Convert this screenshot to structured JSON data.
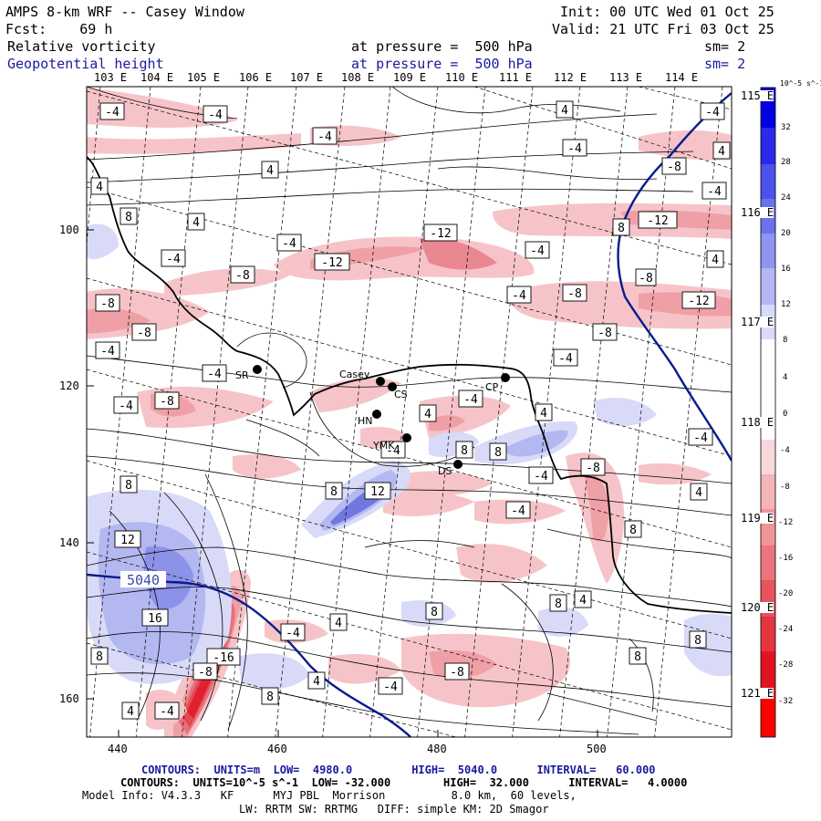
{
  "header": {
    "title": "AMPS 8-km WRF -- Casey Window",
    "forecast": "Fcst:    69 h",
    "init": "Init: 00 UTC Wed 01 Oct 25",
    "valid": "Valid: 21 UTC Fri 03 Oct 25",
    "field1_name": "Relative vorticity",
    "field1_level": "at pressure =  500 hPa",
    "field1_smooth": "sm= 2",
    "field2_name": "Geopotential height",
    "field2_level": "at pressure =  500 hPa",
    "field2_smooth": "sm= 2"
  },
  "colors": {
    "height_contour": "#0a1a8c",
    "coastline": "#000000",
    "positive_fill": "#e8404a",
    "negative_fill": "#3a4ae0"
  },
  "axes": {
    "x_ticks": [
      "440",
      "460",
      "480",
      "500"
    ],
    "y_ticks": [
      "100",
      "120",
      "140",
      "160"
    ],
    "lon_labels": [
      "103 E",
      "104 E",
      "105 E",
      "106 E",
      "107 E",
      "108 E",
      "109 E",
      "110 E",
      "111 E",
      "112 E",
      "113 E",
      "114 E"
    ],
    "lat_labels": [
      "115 E",
      "116 E",
      "117 E",
      "118 E",
      "119 E",
      "120 E",
      "121 E"
    ]
  },
  "colorbar": {
    "unit": "10^-5 s^-1",
    "ticks": [
      "32",
      "28",
      "24",
      "20",
      "16",
      "12",
      "8",
      "4",
      "0",
      "-4",
      "-8",
      "-12",
      "-16",
      "-20",
      "-24",
      "-28",
      "-32"
    ]
  },
  "stations": [
    {
      "id": "Casey",
      "label": "Casey"
    },
    {
      "id": "CS",
      "label": "CS"
    },
    {
      "id": "CP",
      "label": "CP"
    },
    {
      "id": "SR",
      "label": "SR"
    },
    {
      "id": "HN",
      "label": "HN"
    },
    {
      "id": "YMK",
      "label": "YMK"
    },
    {
      "id": "DS",
      "label": "DS"
    }
  ],
  "contour_labels": [
    "-4",
    "-4",
    "4",
    "-4",
    "-4",
    "4",
    "4",
    "-4",
    "-8",
    "-12",
    "-4",
    "8",
    "8",
    "-12",
    "4",
    "-4",
    "-8",
    "-4",
    "-8",
    "-12",
    "-8",
    "-8",
    "-8",
    "-4",
    "-8",
    "-4",
    "-8",
    "-4",
    "4",
    "-4",
    "-4",
    "4",
    "8",
    "4",
    "-4",
    "8",
    "8",
    "12",
    "8",
    "-4",
    "8",
    "12",
    "-4",
    "-8",
    "-4",
    "8",
    "8",
    "12",
    "16",
    "-16",
    "-4",
    "4",
    "-4",
    "8",
    "4",
    "4",
    "8",
    "8",
    "-8",
    "8",
    "4",
    "-4",
    "-8",
    "8",
    "4",
    "-12",
    "4",
    "-4",
    "-4",
    "-4"
  ],
  "height_label": "5040",
  "footer": {
    "line1": "CONTOURS:  UNITS=m  LOW=  4980.0         HIGH=  5040.0      INTERVAL=   60.000",
    "line2": "CONTOURS:  UNITS=10^-5 s^-1  LOW= -32.000        HIGH=  32.000      INTERVAL=   4.0000",
    "line3": "Model Info: V4.3.3   KF      MYJ PBL  Morrison          8.0 km,  60 levels,",
    "line4": "LW: RRTM SW: RRTMG   DIFF: simple KM: 2D Smagor"
  }
}
